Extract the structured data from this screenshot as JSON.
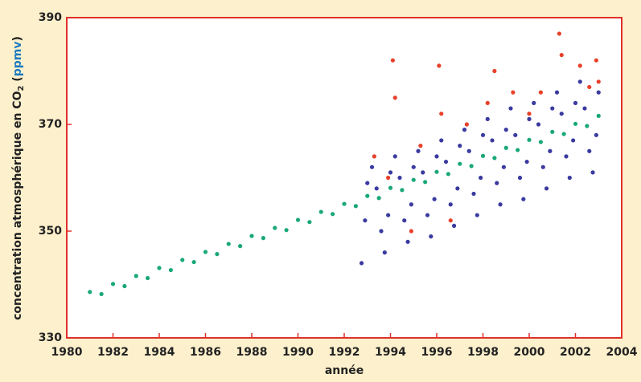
{
  "chart_data": {
    "type": "scatter",
    "xlabel": "année",
    "ylabel_parts": [
      "concentration atmosphérique en CO",
      "2",
      " (",
      "ppmv",
      ")"
    ],
    "xlim": [
      1980,
      2004
    ],
    "ylim": [
      330,
      390
    ],
    "xticks": [
      1980,
      1982,
      1984,
      1986,
      1988,
      1990,
      1992,
      1994,
      1996,
      1998,
      2000,
      2002,
      2004
    ],
    "yticks": [
      330,
      350,
      370,
      390
    ],
    "grid": false,
    "series": [
      {
        "color": "#1aa878",
        "x": [
          1981,
          1981.5,
          1982,
          1982.5,
          1983,
          1983.5,
          1984,
          1984.5,
          1985,
          1985.5,
          1986,
          1986.5,
          1987,
          1987.5,
          1988,
          1988.5,
          1989,
          1989.5,
          1990,
          1990.5,
          1991,
          1991.5,
          1992,
          1992.5,
          1993,
          1993.5,
          1994,
          1994.5,
          1995,
          1995.5,
          1996,
          1996.5,
          1997,
          1997.5,
          1998,
          1998.5,
          1999,
          1999.5,
          2000,
          2000.5,
          2001,
          2001.5,
          2002,
          2002.5,
          2003
        ],
        "values": [
          338.6,
          338.2,
          340.1,
          339.7,
          341.6,
          341.2,
          343.1,
          342.7,
          344.6,
          344.2,
          346.1,
          345.7,
          347.6,
          347.2,
          349.1,
          348.7,
          350.6,
          350.2,
          352.1,
          351.7,
          353.6,
          353.2,
          355.1,
          354.7,
          356.6,
          356.2,
          358.1,
          357.7,
          359.6,
          359.2,
          361.1,
          360.7,
          362.6,
          362.2,
          364.1,
          363.7,
          365.6,
          365.2,
          367.1,
          366.7,
          368.6,
          368.2,
          370.1,
          369.7,
          371.6
        ]
      },
      {
        "color": "#3a3aa0",
        "x": [
          1992.75,
          1992.9,
          1993.0,
          1993.2,
          1993.4,
          1993.6,
          1993.75,
          1993.9,
          1994.0,
          1994.2,
          1994.4,
          1994.6,
          1994.75,
          1994.9,
          1995.0,
          1995.2,
          1995.4,
          1995.6,
          1995.75,
          1995.9,
          1996.0,
          1996.2,
          1996.4,
          1996.6,
          1996.75,
          1996.9,
          1997.0,
          1997.2,
          1997.4,
          1997.6,
          1997.75,
          1997.9,
          1998.0,
          1998.2,
          1998.4,
          1998.6,
          1998.75,
          1998.9,
          1999.0,
          1999.2,
          1999.4,
          1999.6,
          1999.75,
          1999.9,
          2000.0,
          2000.2,
          2000.4,
          2000.6,
          2000.75,
          2000.9,
          2001.0,
          2001.2,
          2001.4,
          2001.6,
          2001.75,
          2001.9,
          2002.0,
          2002.2,
          2002.4,
          2002.6,
          2002.75,
          2002.9,
          2003.0
        ],
        "values": [
          344,
          352,
          359,
          362,
          358,
          350,
          346,
          353,
          361,
          364,
          360,
          352,
          348,
          355,
          362,
          365,
          361,
          353,
          349,
          356,
          364,
          367,
          363,
          355,
          351,
          358,
          366,
          369,
          365,
          357,
          353,
          360,
          368,
          371,
          367,
          359,
          355,
          362,
          369,
          373,
          368,
          360,
          356,
          363,
          371,
          374,
          370,
          362,
          358,
          365,
          373,
          376,
          372,
          364,
          360,
          367,
          374,
          378,
          373,
          365,
          361,
          368,
          376
        ]
      },
      {
        "color": "#e8402a",
        "x": [
          1993.3,
          1993.9,
          1994.1,
          1994.2,
          1994.9,
          1995.3,
          1996.1,
          1996.2,
          1996.6,
          1997.3,
          1998.2,
          1998.5,
          1999.3,
          2000.0,
          2000.5,
          2001.3,
          2001.4,
          2002.2,
          2002.6,
          2002.9,
          2003.0
        ],
        "values": [
          364,
          360,
          382,
          375,
          350,
          366,
          381,
          372,
          352,
          370,
          374,
          380,
          376,
          372,
          376,
          387,
          383,
          381,
          377,
          382,
          378
        ]
      }
    ]
  }
}
